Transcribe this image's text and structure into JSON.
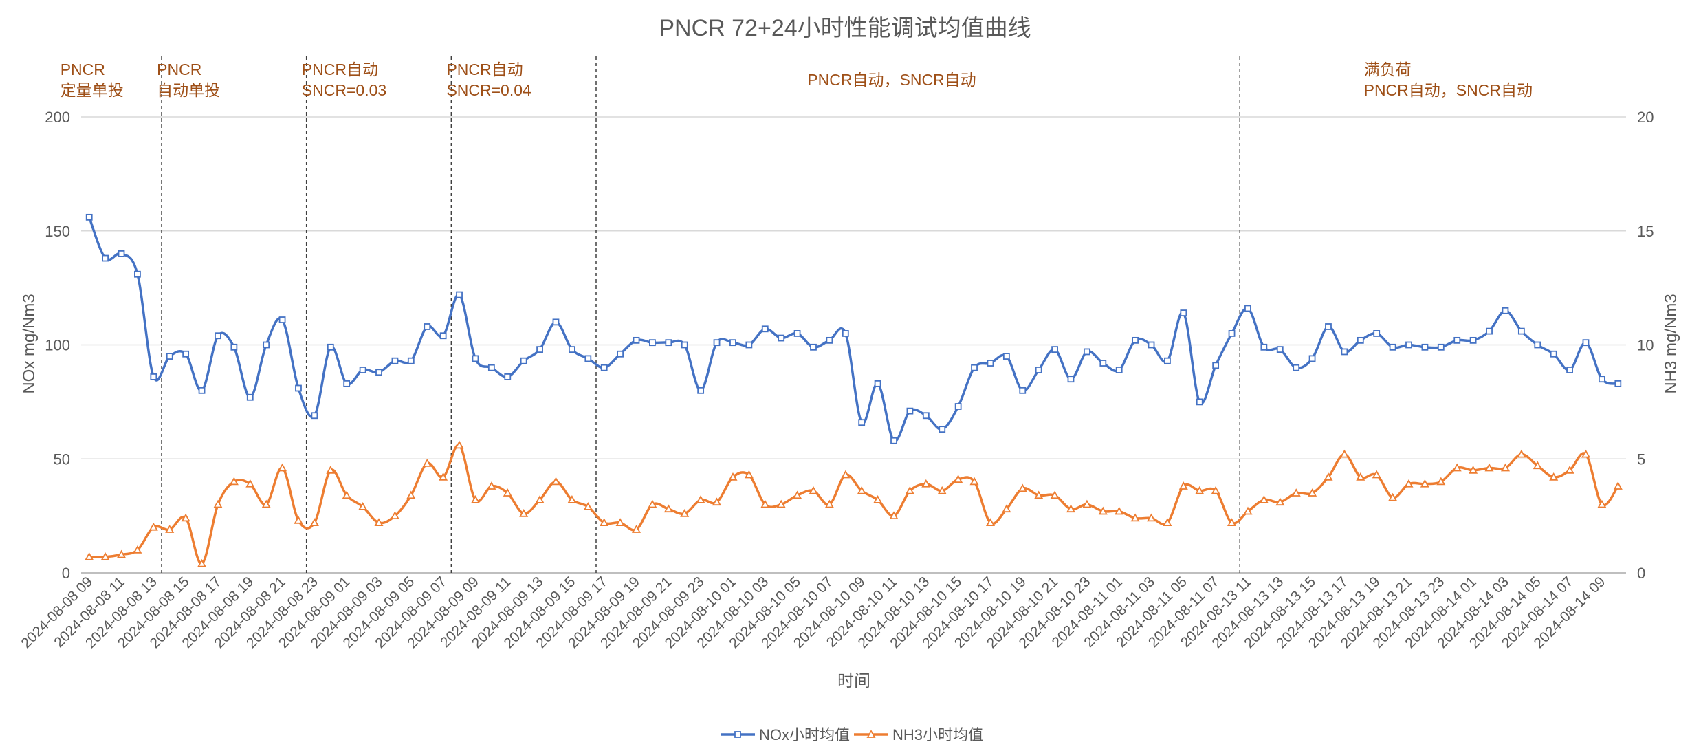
{
  "chart_data": {
    "type": "line",
    "title": "PNCR 72+24小时性能调试均值曲线",
    "xlabel": "时间",
    "ylabel_left": "NOx mg/Nm3",
    "ylabel_right": "NH3 mg/Nm3",
    "ylim_left": [
      0,
      200
    ],
    "ylim_right": [
      0,
      20
    ],
    "yticks_left": [
      "0",
      "50",
      "100",
      "150",
      "200"
    ],
    "yticks_right": [
      "0",
      "5",
      "10",
      "15",
      "20"
    ],
    "grid": true,
    "legend_position": "bottom",
    "x_tick_labels": [
      "2024-08-08 09",
      "2024-08-08 11",
      "2024-08-08 13",
      "2024-08-08 15",
      "2024-08-08 17",
      "2024-08-08 19",
      "2024-08-08 21",
      "2024-08-08 23",
      "2024-08-09 01",
      "2024-08-09 03",
      "2024-08-09 05",
      "2024-08-09 07",
      "2024-08-09 09",
      "2024-08-09 11",
      "2024-08-09 13",
      "2024-08-09 15",
      "2024-08-09 17",
      "2024-08-09 19",
      "2024-08-09 21",
      "2024-08-09 23",
      "2024-08-10 01",
      "2024-08-10 03",
      "2024-08-10 05",
      "2024-08-10 07",
      "2024-08-10 09",
      "2024-08-10 11",
      "2024-08-10 13",
      "2024-08-10 15",
      "2024-08-10 17",
      "2024-08-10 19",
      "2024-08-10 21",
      "2024-08-10 23",
      "2024-08-11 01",
      "2024-08-11 03",
      "2024-08-11 05",
      "2024-08-11 07",
      "2024-08-13 11",
      "2024-08-13 13",
      "2024-08-13 15",
      "2024-08-13 17",
      "2024-08-13 19",
      "2024-08-13 21",
      "2024-08-13 23",
      "2024-08-14 01",
      "2024-08-14 03",
      "2024-08-14 05",
      "2024-08-14 07",
      "2024-08-14 09"
    ],
    "series": [
      {
        "name": "NOx小时均值",
        "axis": "left",
        "color": "#4472c4",
        "marker": "square",
        "values": [
          156,
          138,
          140,
          131,
          86,
          95,
          96,
          80,
          104,
          99,
          77,
          100,
          111,
          81,
          69,
          99,
          83,
          89,
          88,
          93,
          93,
          108,
          104,
          122,
          94,
          90,
          86,
          93,
          98,
          110,
          98,
          94,
          90,
          96,
          102,
          101,
          101,
          100,
          80,
          101,
          101,
          100,
          107,
          103,
          105,
          99,
          102,
          105,
          66,
          83,
          58,
          71,
          69,
          63,
          73,
          90,
          92,
          95,
          80,
          89,
          98,
          85,
          97,
          92,
          89,
          102,
          100,
          93,
          114,
          75,
          91,
          105,
          116,
          99,
          98,
          90,
          94,
          108,
          97,
          102,
          105,
          99,
          100,
          99,
          99,
          102,
          102,
          106,
          115,
          106,
          100,
          96,
          89,
          101,
          85,
          83
        ]
      },
      {
        "name": "NH3小时均值",
        "axis": "right",
        "color": "#ed7d31",
        "marker": "triangle",
        "values": [
          0.7,
          0.7,
          0.8,
          1.0,
          2.0,
          1.9,
          2.4,
          0.4,
          3.0,
          4.0,
          3.9,
          3.0,
          4.6,
          2.3,
          2.2,
          4.5,
          3.4,
          2.9,
          2.2,
          2.5,
          3.4,
          4.8,
          4.2,
          5.6,
          3.2,
          3.8,
          3.5,
          2.6,
          3.2,
          4.0,
          3.2,
          2.9,
          2.2,
          2.2,
          1.9,
          3.0,
          2.8,
          2.6,
          3.2,
          3.1,
          4.2,
          4.3,
          3.0,
          3.0,
          3.4,
          3.6,
          3.0,
          4.3,
          3.6,
          3.2,
          2.5,
          3.6,
          3.9,
          3.6,
          4.1,
          4.0,
          2.2,
          2.8,
          3.7,
          3.4,
          3.4,
          2.8,
          3.0,
          2.7,
          2.7,
          2.4,
          2.4,
          2.2,
          3.8,
          3.6,
          3.6,
          2.2,
          2.7,
          3.2,
          3.1,
          3.5,
          3.5,
          4.2,
          5.2,
          4.2,
          4.3,
          3.3,
          3.9,
          3.9,
          4.0,
          4.6,
          4.5,
          4.6,
          4.6,
          5.2,
          4.7,
          4.2,
          4.5,
          5.2,
          3.0,
          3.8
        ]
      }
    ],
    "phase_dividers_after_point": [
      4,
      13,
      22,
      31,
      71
    ],
    "annotations": [
      {
        "lines": [
          "PNCR",
          "定量单投"
        ],
        "align_point": 0
      },
      {
        "lines": [
          "PNCR",
          "自动单投"
        ],
        "align_point": 6
      },
      {
        "lines": [
          "PNCR自动",
          "SNCR=0.03"
        ],
        "align_point": 15
      },
      {
        "lines": [
          "PNCR自动",
          "SNCR=0.04"
        ],
        "align_point": 24
      },
      {
        "lines": [
          "PNCR自动，SNCR自动"
        ],
        "align_point": 45
      },
      {
        "lines": [
          "满负荷",
          "PNCR自动，SNCR自动"
        ],
        "align_point": 81
      }
    ]
  }
}
